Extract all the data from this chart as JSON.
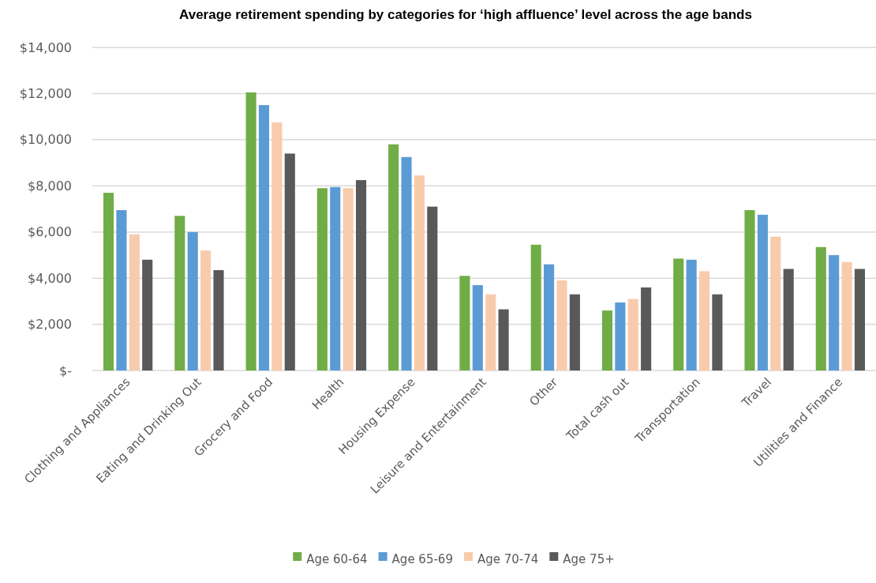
{
  "chart_data": {
    "type": "bar",
    "title": "Average retirement spending by categories for ‘high affluence’ level across the age bands",
    "categories": [
      "Clothing and Appliances",
      "Eating and Drinking Out",
      "Grocery and Food",
      "Health",
      "Housing Expense",
      "Leisure and Entertainment",
      "Other",
      "Total cash out",
      "Transportation",
      "Travel",
      "Utilities and Finance"
    ],
    "series": [
      {
        "name": "Age 60-64",
        "color": "#70ad47",
        "values": [
          7700,
          6700,
          12050,
          7900,
          9800,
          4100,
          5450,
          2600,
          4850,
          6950,
          5350
        ]
      },
      {
        "name": "Age 65-69",
        "color": "#5b9bd5",
        "values": [
          6950,
          6000,
          11500,
          7950,
          9250,
          3700,
          4600,
          2950,
          4800,
          6750,
          5000
        ]
      },
      {
        "name": "Age 70-74",
        "color": "#f8cbad",
        "values": [
          5900,
          5200,
          10750,
          7900,
          8450,
          3300,
          3900,
          3100,
          4300,
          5800,
          4700
        ]
      },
      {
        "name": "Age 75+",
        "color": "#595959",
        "values": [
          4800,
          4350,
          9400,
          8250,
          7100,
          2650,
          3300,
          3600,
          3300,
          4400,
          4400
        ]
      }
    ],
    "ylim": [
      0,
      14000
    ],
    "yticks": [
      {
        "value": 0,
        "label": "$-"
      },
      {
        "value": 2000,
        "label": "$2,000"
      },
      {
        "value": 4000,
        "label": "$4,000"
      },
      {
        "value": 6000,
        "label": "$6,000"
      },
      {
        "value": 8000,
        "label": "$8,000"
      },
      {
        "value": 10000,
        "label": "$10,000"
      },
      {
        "value": 12000,
        "label": "$12,000"
      },
      {
        "value": 14000,
        "label": "$14,000"
      }
    ],
    "grid": "y",
    "legend": "bottom"
  }
}
